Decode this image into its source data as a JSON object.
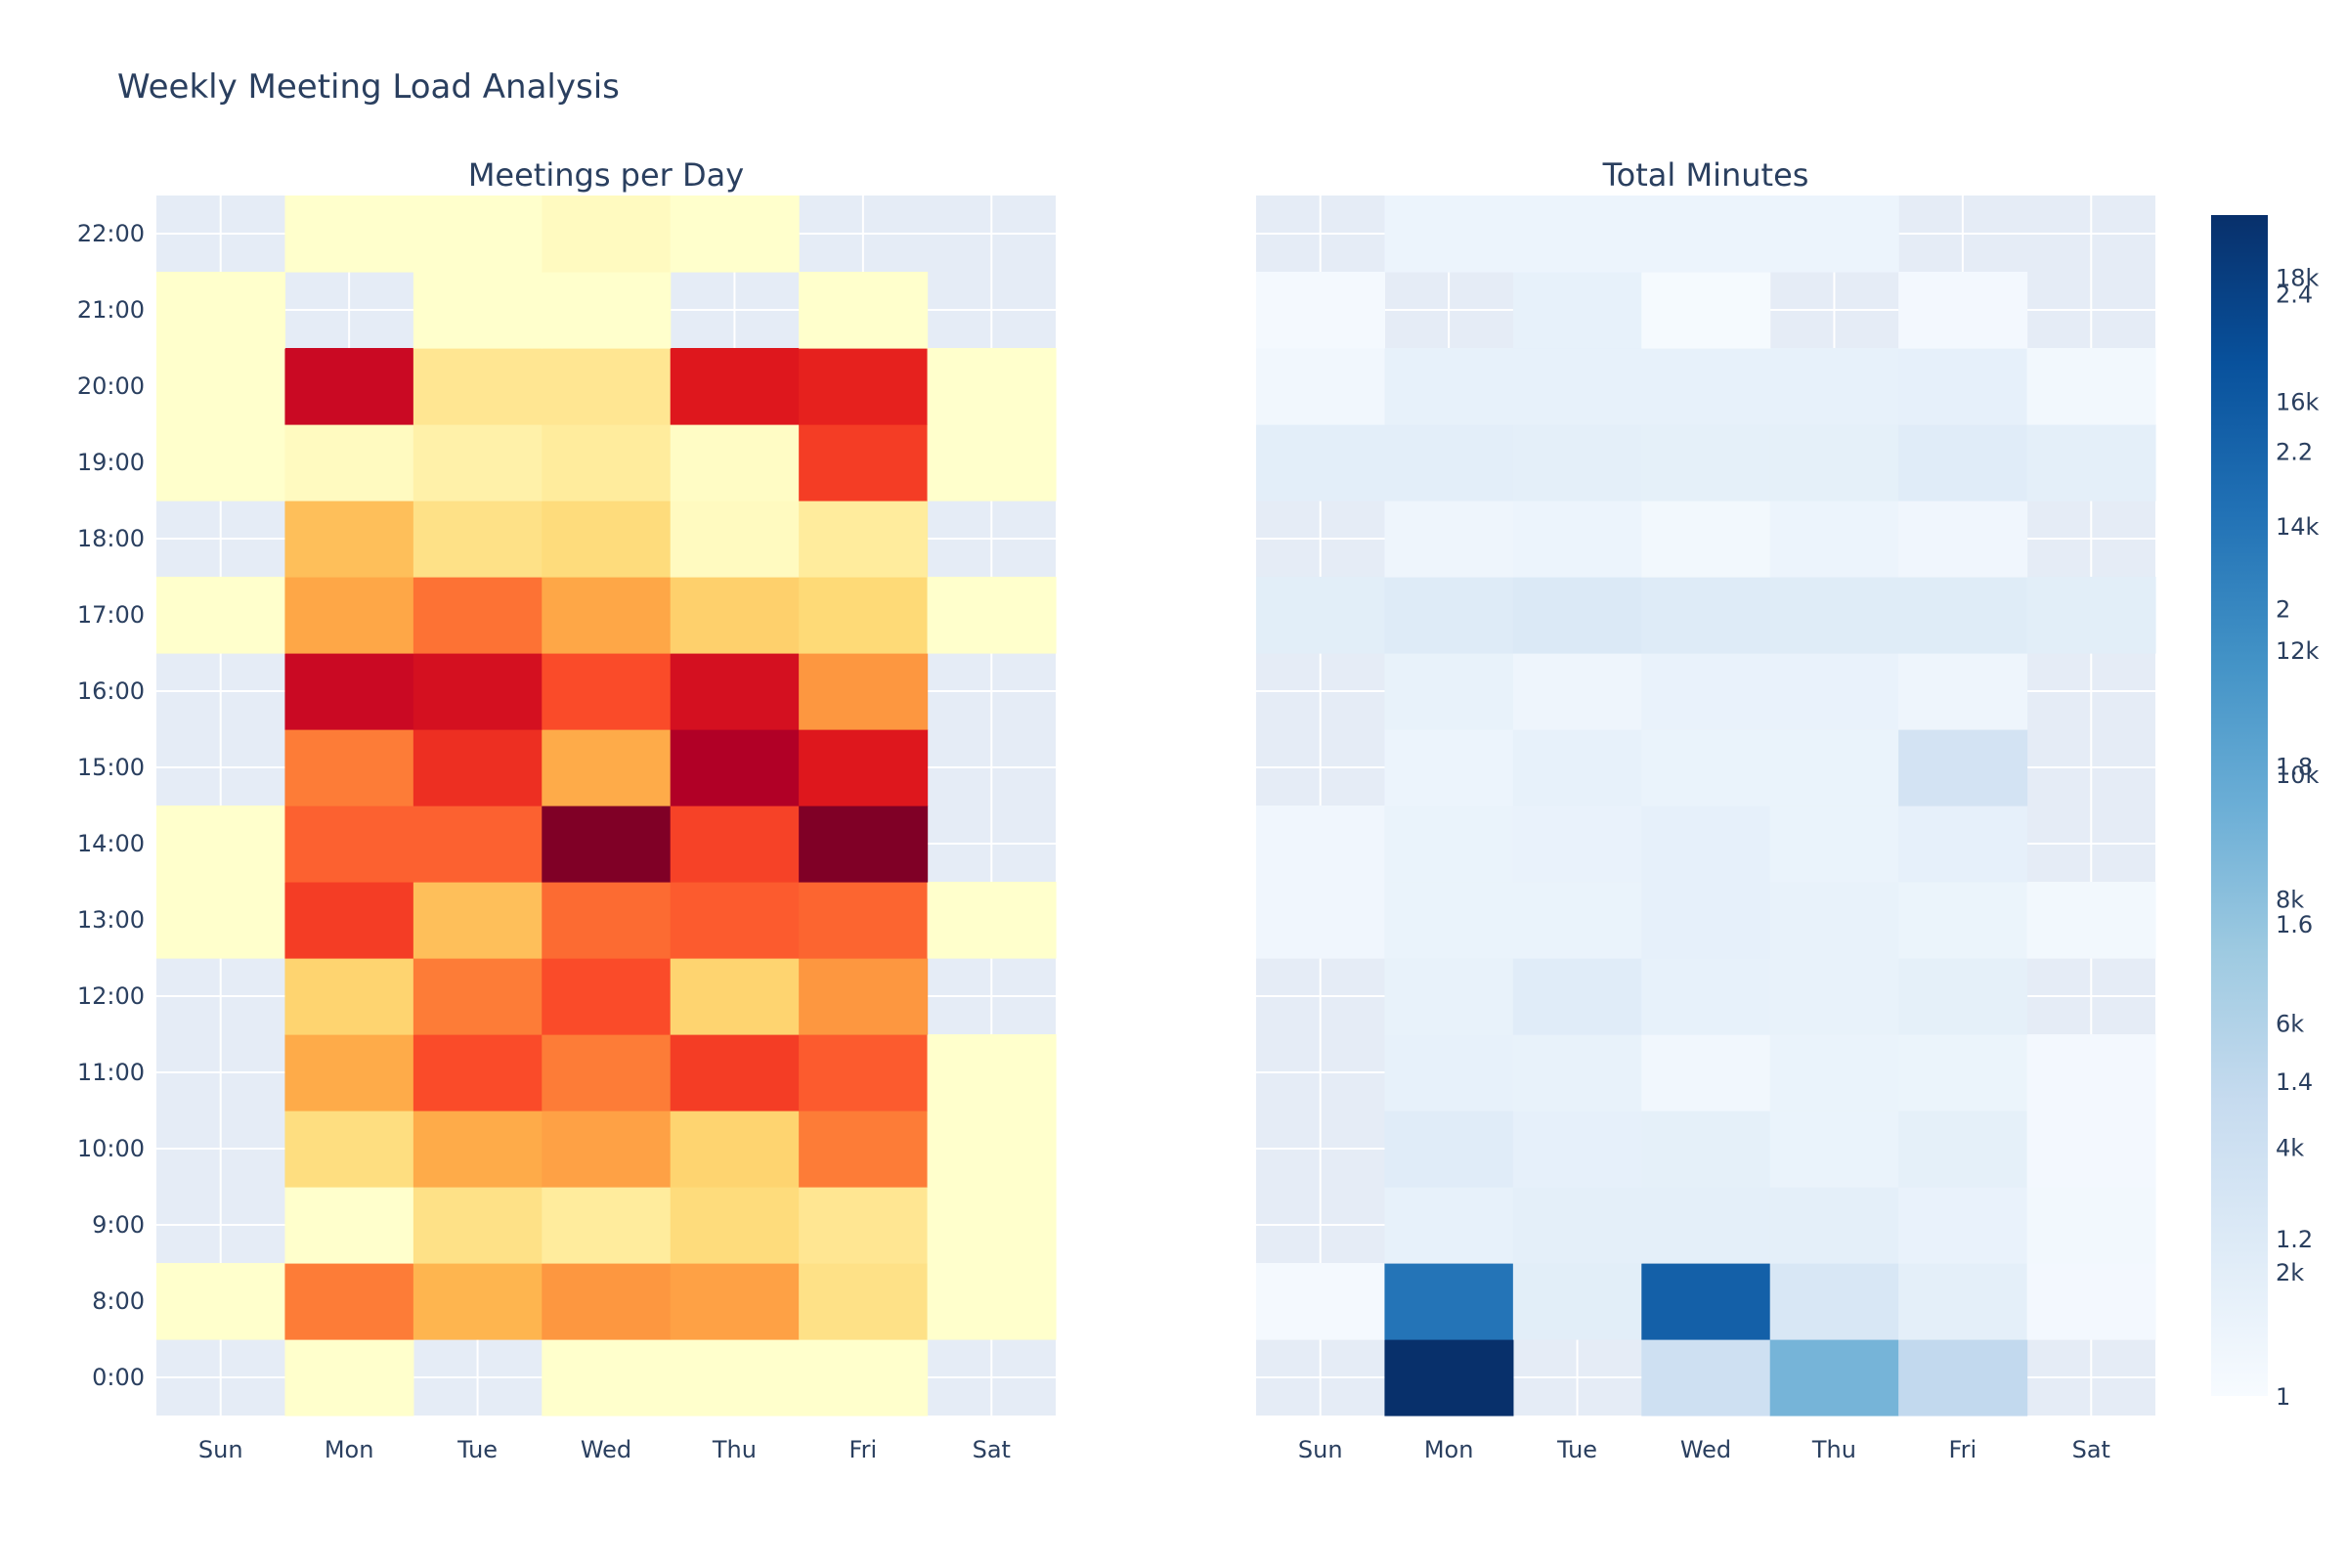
{
  "title": "Weekly Meeting Load Analysis",
  "chart_data": [
    {
      "type": "heatmap",
      "title": "Meetings per Day",
      "colorscale": "YlOrRd",
      "x": [
        "Sun",
        "Mon",
        "Tue",
        "Wed",
        "Thu",
        "Fri",
        "Sat"
      ],
      "y": [
        "0:00",
        "8:00",
        "9:00",
        "10:00",
        "11:00",
        "12:00",
        "13:00",
        "14:00",
        "15:00",
        "16:00",
        "17:00",
        "18:00",
        "19:00",
        "20:00",
        "21:00",
        "22:00"
      ],
      "z": [
        [
          null,
          1.0,
          null,
          1.0,
          1.0,
          1.0,
          null
        ],
        [
          1.0,
          1.8,
          1.55,
          1.7,
          1.65,
          1.3,
          1.0
        ],
        [
          null,
          1.0,
          1.3,
          1.2,
          1.35,
          1.25,
          1.0
        ],
        [
          null,
          1.33,
          1.6,
          1.65,
          1.4,
          1.8,
          1.0
        ],
        [
          null,
          1.6,
          1.95,
          1.8,
          2.0,
          1.9,
          1.0
        ],
        [
          null,
          1.4,
          1.8,
          1.95,
          1.4,
          1.7,
          null
        ],
        [
          1.0,
          2.0,
          1.5,
          1.85,
          1.9,
          1.87,
          1.0
        ],
        [
          1.0,
          1.88,
          1.88,
          2.5,
          1.98,
          2.5,
          null
        ],
        [
          null,
          1.8,
          2.05,
          1.6,
          2.35,
          2.15,
          null
        ],
        [
          null,
          2.25,
          2.2,
          1.95,
          2.2,
          1.7,
          null
        ],
        [
          1.0,
          1.62,
          1.83,
          1.62,
          1.42,
          1.37,
          1.0
        ],
        [
          null,
          1.5,
          1.3,
          1.35,
          1.05,
          1.2,
          null
        ],
        [
          1.0,
          1.05,
          1.15,
          1.2,
          1.03,
          2.0,
          1.0
        ],
        [
          1.0,
          2.25,
          1.25,
          1.25,
          2.15,
          2.1,
          1.0
        ],
        [
          1.0,
          null,
          1.0,
          1.0,
          null,
          1.0,
          null
        ],
        [
          null,
          1.0,
          1.0,
          1.05,
          1.0,
          null,
          null
        ]
      ],
      "colorbar_ticks": [
        "1",
        "1.2",
        "1.4",
        "1.6",
        "1.8",
        "2",
        "2.2",
        "2.4"
      ],
      "zlim": [
        1,
        2.5
      ]
    },
    {
      "type": "heatmap",
      "title": "Total Minutes",
      "colorscale": "Blues",
      "x": [
        "Sun",
        "Mon",
        "Tue",
        "Wed",
        "Thu",
        "Fri",
        "Sat"
      ],
      "y": [
        "0:00",
        "8:00",
        "9:00",
        "10:00",
        "11:00",
        "12:00",
        "13:00",
        "14:00",
        "15:00",
        "16:00",
        "17:00",
        "18:00",
        "19:00",
        "20:00",
        "21:00",
        "22:00"
      ],
      "z": [
        [
          null,
          19000,
          null,
          4000,
          9000,
          5000,
          null
        ],
        [
          300,
          14000,
          2000,
          15500,
          3000,
          1800,
          400
        ],
        [
          null,
          1500,
          1800,
          1800,
          1800,
          1300,
          500
        ],
        [
          null,
          2200,
          1600,
          1700,
          1200,
          1700,
          400
        ],
        [
          null,
          1500,
          1400,
          600,
          1200,
          1100,
          400
        ],
        [
          null,
          1400,
          2200,
          1500,
          1400,
          1700,
          null
        ],
        [
          700,
          1200,
          1200,
          1600,
          1400,
          1100,
          500
        ],
        [
          700,
          1200,
          1300,
          1600,
          1200,
          1600,
          null
        ],
        [
          null,
          1000,
          1500,
          1200,
          1200,
          3500,
          null
        ],
        [
          null,
          1400,
          900,
          1300,
          1300,
          900,
          null
        ],
        [
          2000,
          2400,
          2700,
          2400,
          2300,
          2300,
          2000
        ],
        [
          null,
          900,
          1000,
          500,
          1000,
          700,
          null
        ],
        [
          1900,
          1900,
          1800,
          1700,
          1700,
          2200,
          1800
        ],
        [
          600,
          1500,
          1500,
          1500,
          1500,
          1600,
          500
        ],
        [
          300,
          null,
          1500,
          200,
          null,
          400,
          null
        ],
        [
          null,
          1000,
          1000,
          1000,
          1000,
          null,
          null
        ]
      ],
      "colorbar_ticks": [
        "2k",
        "4k",
        "6k",
        "8k",
        "10k",
        "12k",
        "14k",
        "16k",
        "18k"
      ],
      "zlim": [
        0,
        19000
      ]
    }
  ]
}
